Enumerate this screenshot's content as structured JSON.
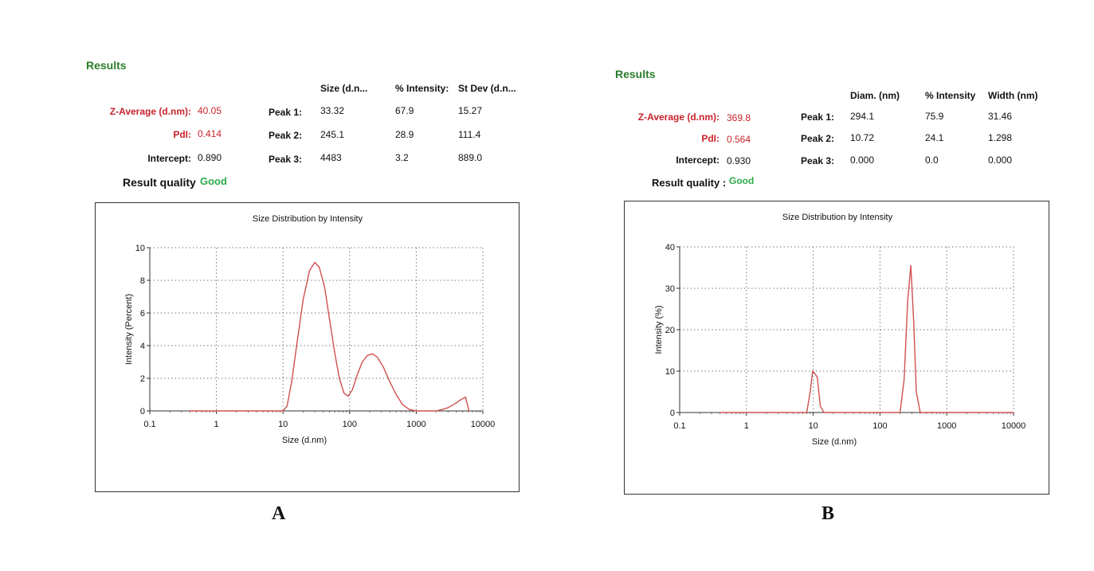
{
  "panels": [
    {
      "letter": "A",
      "results_label": "Results",
      "summary": [
        {
          "label": "Z-Average (d.nm):",
          "value": "40.05",
          "highlight": true
        },
        {
          "label": "PdI:",
          "value": "0.414",
          "highlight": true
        },
        {
          "label": "Intercept:",
          "value": "0.890",
          "highlight": false
        }
      ],
      "result_quality_label": "Result quality",
      "result_quality_value": "Good",
      "table": {
        "headers": [
          "Size (d.n...",
          "% Intensity:",
          "St Dev (d.n..."
        ],
        "rows": [
          {
            "label": "Peak 1:",
            "values": [
              "33.32",
              "67.9",
              "15.27"
            ]
          },
          {
            "label": "Peak 2:",
            "values": [
              "245.1",
              "28.9",
              "111.4"
            ]
          },
          {
            "label": "Peak 3:",
            "values": [
              "4483",
              "3.2",
              "889.0"
            ]
          }
        ]
      }
    },
    {
      "letter": "B",
      "results_label": "Results",
      "summary": [
        {
          "label": "Z-Average (d.nm):",
          "value": "369.8",
          "highlight": true
        },
        {
          "label": "PdI:",
          "value": "0.564",
          "highlight": true
        },
        {
          "label": "Intercept:",
          "value": "0.930",
          "highlight": false
        }
      ],
      "result_quality_label": "Result quality :",
      "result_quality_value": "Good",
      "table": {
        "headers": [
          "Diam. (nm)",
          "% Intensity",
          "Width (nm)"
        ],
        "rows": [
          {
            "label": "Peak 1:",
            "values": [
              "294.1",
              "75.9",
              "31.46"
            ]
          },
          {
            "label": "Peak 2:",
            "values": [
              "10.72",
              "24.1",
              "1.298"
            ]
          },
          {
            "label": "Peak 3:",
            "values": [
              "0.000",
              "0.0",
              "0.000"
            ]
          }
        ]
      }
    }
  ],
  "chart_data": [
    {
      "type": "line",
      "title": "Size Distribution by Intensity",
      "xlabel": "Size (d.nm)",
      "ylabel": "Intensity (Percent)",
      "xscale": "log",
      "xlim": [
        0.1,
        10000
      ],
      "ylim": [
        0,
        10
      ],
      "xticks": [
        "0.1",
        "1",
        "10",
        "100",
        "1000",
        "10000"
      ],
      "yticks": [
        "0",
        "2",
        "4",
        "6",
        "8",
        "10"
      ],
      "grid": true,
      "line_color": "#d0504f",
      "series": [
        {
          "x": [
            0.4,
            1,
            5,
            10,
            11.5,
            13.5,
            16,
            20,
            25,
            30,
            35,
            42,
            50,
            60,
            70,
            82,
            95,
            110,
            130,
            155,
            185,
            220,
            260,
            320,
            400,
            500,
            620,
            780,
            1000,
            1500,
            2000,
            2500,
            3000,
            3500,
            4000,
            4500,
            5000,
            5500,
            6200
          ],
          "y": [
            0,
            0,
            0,
            0,
            0.3,
            1.8,
            4.0,
            6.8,
            8.6,
            9.1,
            8.8,
            7.6,
            5.6,
            3.5,
            2.0,
            1.1,
            0.9,
            1.3,
            2.2,
            3.0,
            3.4,
            3.5,
            3.3,
            2.7,
            1.8,
            1.0,
            0.4,
            0.1,
            0,
            0,
            0,
            0.1,
            0.2,
            0.35,
            0.5,
            0.65,
            0.75,
            0.85,
            0
          ]
        }
      ]
    },
    {
      "type": "line",
      "title": "Size Distribution by Intensity",
      "xlabel": "Size (d.nm)",
      "ylabel": "Intensity (%)",
      "xscale": "log",
      "xlim": [
        0.1,
        10000
      ],
      "ylim": [
        0,
        40
      ],
      "xticks": [
        "0.1",
        "1",
        "10",
        "100",
        "1000",
        "10000"
      ],
      "yticks": [
        "0",
        "10",
        "20",
        "30",
        "40"
      ],
      "grid": true,
      "line_color": "#d0504f",
      "series": [
        {
          "x": [
            0.4,
            1,
            5,
            8,
            9,
            9.8,
            10.5,
            11.5,
            12.8,
            14.5,
            100,
            200,
            230,
            260,
            290,
            320,
            350,
            400,
            1000,
            10000
          ],
          "y": [
            0,
            0,
            0,
            0,
            5,
            10,
            9.5,
            8.5,
            1.5,
            0,
            0,
            0,
            8,
            27,
            35.5,
            22,
            5,
            0,
            0,
            0
          ]
        }
      ]
    }
  ]
}
